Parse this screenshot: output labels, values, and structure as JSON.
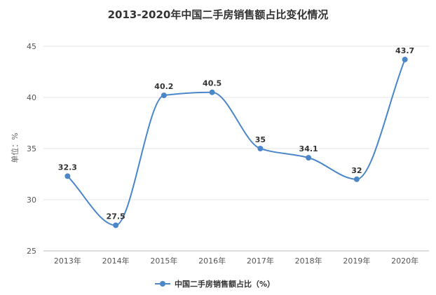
{
  "chart_data": {
    "type": "line",
    "title": "2013-2020年中国二手房销售额占比变化情况",
    "ylabel": "单位：%",
    "xlabel": "",
    "categories": [
      "2013年",
      "2014年",
      "2015年",
      "2016年",
      "2017年",
      "2018年",
      "2019年",
      "2020年"
    ],
    "series": [
      {
        "name": "中国二手房销售额占比（%）",
        "values": [
          32.3,
          27.5,
          40.2,
          40.5,
          35,
          34.1,
          32,
          43.7
        ],
        "color": "#4a86c8"
      }
    ],
    "yticks": [
      25,
      30,
      35,
      40,
      45
    ],
    "ylim": [
      25,
      45
    ],
    "grid": true,
    "legend": "bottom",
    "smooth": true
  }
}
